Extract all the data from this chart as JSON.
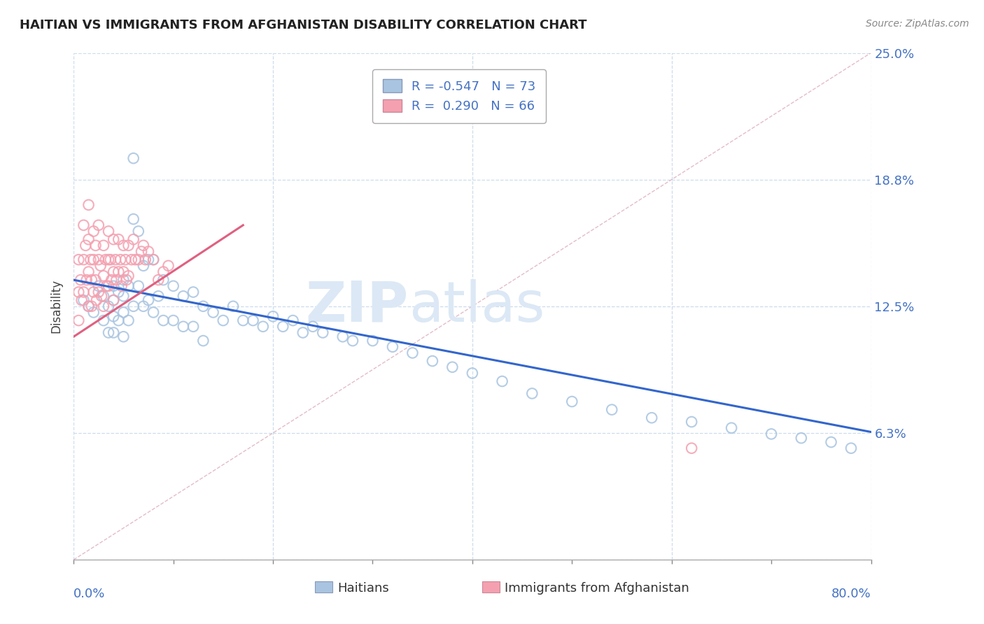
{
  "title": "HAITIAN VS IMMIGRANTS FROM AFGHANISTAN DISABILITY CORRELATION CHART",
  "source": "Source: ZipAtlas.com",
  "ylabel": "Disability",
  "r_haitian": -0.547,
  "n_haitian": 73,
  "r_afghanistan": 0.29,
  "n_afghanistan": 66,
  "color_haitian": "#a8c4e0",
  "color_afghanistan": "#f4a0b0",
  "color_haitian_line": "#3366cc",
  "color_afghanistan_line": "#e06080",
  "color_text": "#4472c4",
  "color_axis_text": "#333333",
  "watermark_zip": "ZIP",
  "watermark_atlas": "atlas",
  "watermark_color": "#dce8f5",
  "background_color": "#ffffff",
  "grid_color": "#ccddee",
  "title_fontsize": 13,
  "xlim": [
    0.0,
    0.8
  ],
  "ylim": [
    0.0,
    0.25
  ],
  "ytick_vals": [
    0.0,
    0.0625,
    0.125,
    0.1875,
    0.25
  ],
  "ytick_labels": [
    "",
    "6.3%",
    "12.5%",
    "18.8%",
    "25.0%"
  ],
  "haitian_x": [
    0.01,
    0.015,
    0.02,
    0.025,
    0.03,
    0.03,
    0.035,
    0.035,
    0.04,
    0.04,
    0.04,
    0.04,
    0.045,
    0.045,
    0.05,
    0.05,
    0.05,
    0.05,
    0.055,
    0.055,
    0.06,
    0.06,
    0.06,
    0.065,
    0.065,
    0.07,
    0.07,
    0.075,
    0.075,
    0.08,
    0.08,
    0.085,
    0.09,
    0.09,
    0.1,
    0.1,
    0.11,
    0.11,
    0.12,
    0.12,
    0.13,
    0.13,
    0.14,
    0.15,
    0.16,
    0.17,
    0.18,
    0.19,
    0.2,
    0.21,
    0.22,
    0.23,
    0.24,
    0.25,
    0.27,
    0.28,
    0.3,
    0.32,
    0.34,
    0.36,
    0.38,
    0.4,
    0.43,
    0.46,
    0.5,
    0.54,
    0.58,
    0.62,
    0.66,
    0.7,
    0.73,
    0.76,
    0.78
  ],
  "haitian_y": [
    0.128,
    0.125,
    0.122,
    0.135,
    0.13,
    0.118,
    0.125,
    0.112,
    0.135,
    0.128,
    0.12,
    0.112,
    0.132,
    0.118,
    0.138,
    0.13,
    0.122,
    0.11,
    0.135,
    0.118,
    0.198,
    0.168,
    0.125,
    0.162,
    0.135,
    0.145,
    0.125,
    0.148,
    0.128,
    0.148,
    0.122,
    0.13,
    0.138,
    0.118,
    0.135,
    0.118,
    0.13,
    0.115,
    0.132,
    0.115,
    0.125,
    0.108,
    0.122,
    0.118,
    0.125,
    0.118,
    0.118,
    0.115,
    0.12,
    0.115,
    0.118,
    0.112,
    0.115,
    0.112,
    0.11,
    0.108,
    0.108,
    0.105,
    0.102,
    0.098,
    0.095,
    0.092,
    0.088,
    0.082,
    0.078,
    0.074,
    0.07,
    0.068,
    0.065,
    0.062,
    0.06,
    0.058,
    0.055
  ],
  "afghanistan_x": [
    0.005,
    0.005,
    0.005,
    0.007,
    0.008,
    0.01,
    0.01,
    0.01,
    0.012,
    0.013,
    0.015,
    0.015,
    0.015,
    0.015,
    0.017,
    0.018,
    0.018,
    0.02,
    0.02,
    0.02,
    0.022,
    0.022,
    0.023,
    0.025,
    0.025,
    0.025,
    0.027,
    0.028,
    0.03,
    0.03,
    0.03,
    0.032,
    0.033,
    0.035,
    0.035,
    0.035,
    0.037,
    0.038,
    0.04,
    0.04,
    0.04,
    0.042,
    0.043,
    0.045,
    0.045,
    0.047,
    0.048,
    0.05,
    0.05,
    0.052,
    0.053,
    0.055,
    0.055,
    0.058,
    0.06,
    0.062,
    0.065,
    0.068,
    0.07,
    0.072,
    0.075,
    0.08,
    0.085,
    0.09,
    0.095,
    0.62
  ],
  "afghanistan_y": [
    0.148,
    0.132,
    0.118,
    0.138,
    0.128,
    0.165,
    0.148,
    0.132,
    0.155,
    0.138,
    0.175,
    0.158,
    0.142,
    0.125,
    0.148,
    0.138,
    0.125,
    0.162,
    0.148,
    0.132,
    0.155,
    0.138,
    0.128,
    0.165,
    0.148,
    0.132,
    0.145,
    0.13,
    0.155,
    0.14,
    0.125,
    0.148,
    0.135,
    0.162,
    0.148,
    0.135,
    0.148,
    0.138,
    0.158,
    0.142,
    0.128,
    0.148,
    0.138,
    0.158,
    0.142,
    0.148,
    0.135,
    0.155,
    0.142,
    0.148,
    0.138,
    0.155,
    0.14,
    0.148,
    0.158,
    0.148,
    0.148,
    0.152,
    0.155,
    0.148,
    0.152,
    0.148,
    0.138,
    0.142,
    0.145,
    0.055
  ],
  "haitian_line_x": [
    0.0,
    0.8
  ],
  "haitian_line_y": [
    0.138,
    0.063
  ],
  "afghanistan_line_x": [
    0.0,
    0.17
  ],
  "afghanistan_line_y": [
    0.11,
    0.165
  ],
  "ref_line_x": [
    0.0,
    0.8
  ],
  "ref_line_y": [
    0.0,
    0.25
  ]
}
